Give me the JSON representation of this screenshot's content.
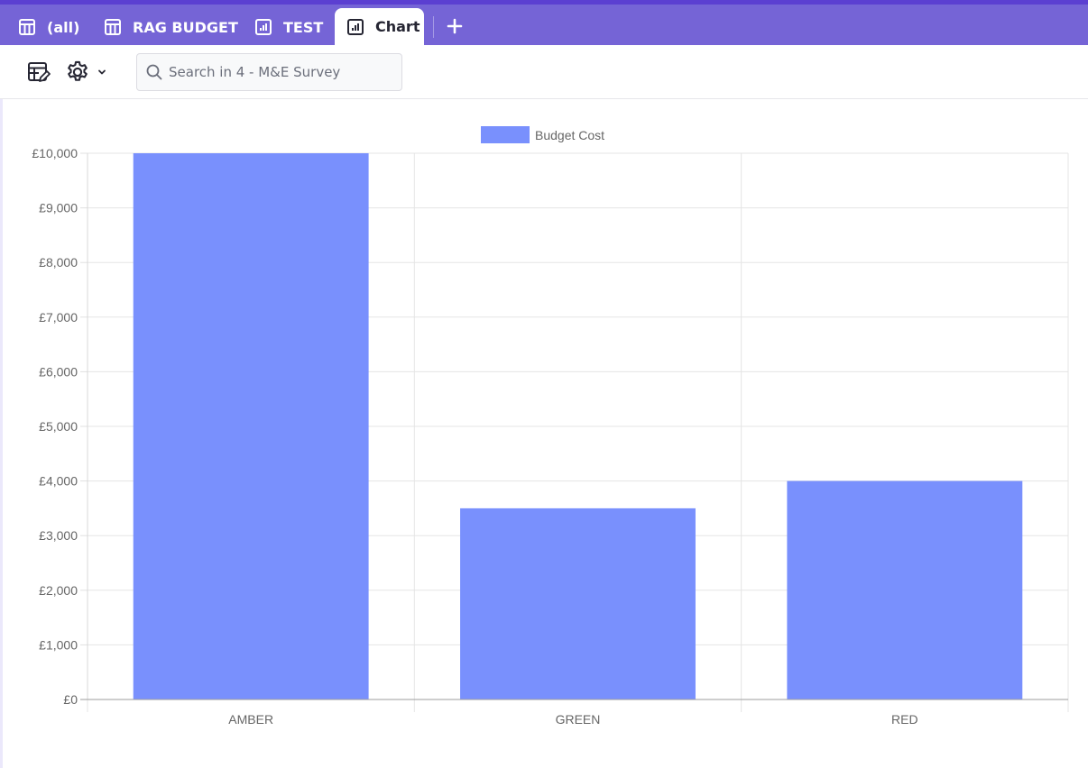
{
  "tabs": [
    {
      "label": "(all)",
      "icon": "table-icon",
      "active": false
    },
    {
      "label": "RAG BUDGET",
      "icon": "table-icon",
      "active": false
    },
    {
      "label": "TEST",
      "icon": "bar-chart-icon",
      "active": false
    },
    {
      "label": "Chart",
      "icon": "bar-chart-icon",
      "active": true
    }
  ],
  "toolbar": {
    "search_placeholder": "Search in 4 - M&E Survey"
  },
  "colors": {
    "header_bg": "#7564d6",
    "header_border": "#5b3fd1",
    "bar": "#7990fd"
  },
  "chart_data": {
    "type": "bar",
    "categories": [
      "AMBER",
      "GREEN",
      "RED"
    ],
    "series": [
      {
        "name": "Budget Cost",
        "values": [
          10000,
          3500,
          4000
        ],
        "color": "#7990fd"
      }
    ],
    "yticks": [
      "£0",
      "£1,000",
      "£2,000",
      "£3,000",
      "£4,000",
      "£5,000",
      "£6,000",
      "£7,000",
      "£8,000",
      "£9,000",
      "£10,000"
    ],
    "ylim": [
      0,
      10000
    ],
    "grid": true,
    "legend": "top-center"
  }
}
